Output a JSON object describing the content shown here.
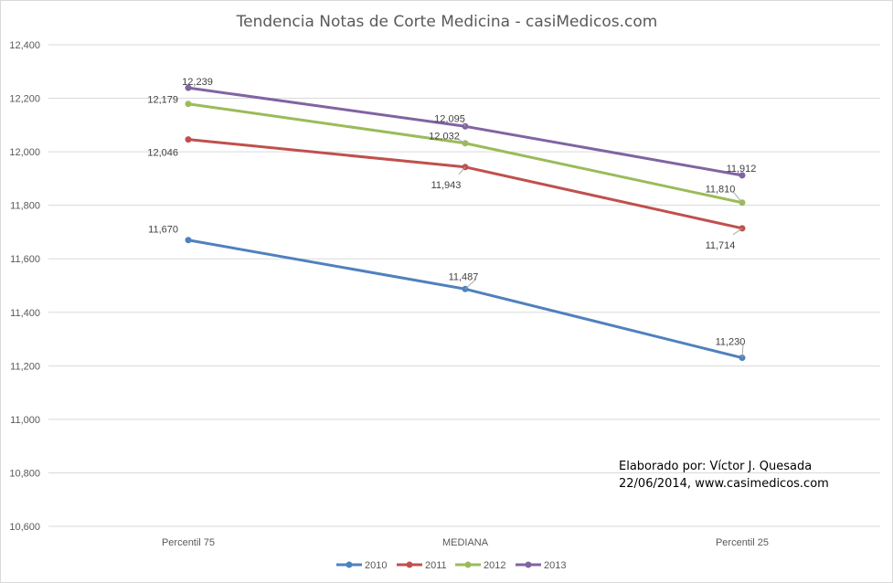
{
  "chart_data": {
    "type": "line",
    "title": "Tendencia Notas de Corte Medicina - casiMedicos.com",
    "xlabel": "",
    "ylabel": "",
    "categories": [
      "Percentil 75",
      "MEDIANA",
      "Percentil 25"
    ],
    "ylim": [
      10.6,
      12.4
    ],
    "yticks": [
      10.6,
      10.8,
      11.0,
      11.2,
      11.4,
      11.6,
      11.8,
      12.0,
      12.2,
      12.4
    ],
    "ytick_labels": [
      "10,600",
      "10,800",
      "11,000",
      "11,200",
      "11,400",
      "11,600",
      "11,800",
      "12,000",
      "12,200",
      "12,400"
    ],
    "grid": true,
    "legend_position": "bottom",
    "series": [
      {
        "name": "2010",
        "color": "#4f81bd",
        "values": [
          11.67,
          11.487,
          11.23
        ],
        "labels": [
          "11,670",
          "11,487",
          "11,230"
        ]
      },
      {
        "name": "2011",
        "color": "#c0504d",
        "values": [
          12.046,
          11.943,
          11.714
        ],
        "labels": [
          "12,046",
          "11,943",
          "11,714"
        ]
      },
      {
        "name": "2012",
        "color": "#9bbb59",
        "values": [
          12.179,
          12.032,
          11.81
        ],
        "labels": [
          "12,179",
          "12,032",
          "11,810"
        ]
      },
      {
        "name": "2013",
        "color": "#8064a2",
        "values": [
          12.239,
          12.095,
          11.912
        ],
        "labels": [
          "12,239",
          "12,095",
          "11,912"
        ]
      }
    ],
    "annotation": {
      "line1": "Elaborado por: Víctor J. Quesada",
      "line2": "22/06/2014,  www.casimedicos.com"
    }
  }
}
